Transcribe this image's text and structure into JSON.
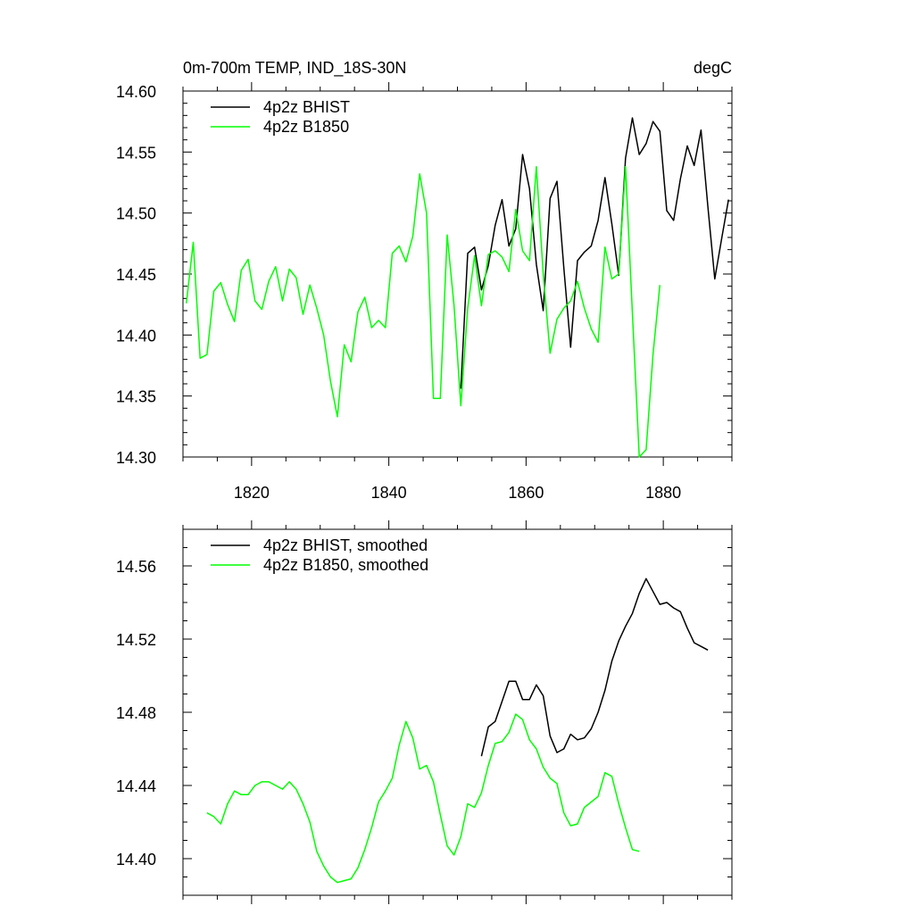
{
  "chart_data": [
    {
      "type": "line",
      "title_left": "0m-700m TEMP, IND_18S-30N",
      "title_right": "degC",
      "xlim": [
        1810,
        1890
      ],
      "ylim": [
        14.3,
        14.6
      ],
      "xticks": [
        1820,
        1840,
        1860,
        1880
      ],
      "xtick_labels": [
        "1820",
        "1840",
        "1860",
        "1880"
      ],
      "yticks": [
        14.3,
        14.35,
        14.4,
        14.45,
        14.5,
        14.55,
        14.6
      ],
      "ytick_labels": [
        "14.30",
        "14.35",
        "14.40",
        "14.45",
        "14.50",
        "14.55",
        "14.60"
      ],
      "legend_position": "top-left",
      "series": [
        {
          "name": "4p2z BHIST",
          "color": "#000000",
          "x": [
            1850.5,
            1851.5,
            1852.5,
            1853.5,
            1854.5,
            1855.5,
            1856.5,
            1857.5,
            1858.5,
            1859.5,
            1860.5,
            1861.5,
            1862.5,
            1863.5,
            1864.5,
            1865.5,
            1866.5,
            1867.5,
            1868.5,
            1869.5,
            1870.5,
            1871.5,
            1872.5,
            1873.5,
            1874.5,
            1875.5,
            1876.5,
            1877.5,
            1878.5,
            1879.5,
            1880.5,
            1881.5,
            1882.5,
            1883.5,
            1884.5,
            1885.5,
            1886.5,
            1887.5,
            1888.5,
            1889.5
          ],
          "y": [
            14.356,
            14.467,
            14.472,
            14.437,
            14.457,
            14.49,
            14.511,
            14.473,
            14.487,
            14.548,
            14.52,
            14.458,
            14.42,
            14.512,
            14.526,
            14.455,
            14.39,
            14.461,
            14.468,
            14.473,
            14.494,
            14.529,
            14.491,
            14.449,
            14.545,
            14.578,
            14.548,
            14.557,
            14.575,
            14.567,
            14.502,
            14.494,
            14.528,
            14.555,
            14.539,
            14.568,
            14.505,
            14.446,
            14.479,
            14.511
          ]
        },
        {
          "name": "4p2z B1850",
          "color": "#00ff00",
          "x": [
            1810.5,
            1811.5,
            1812.5,
            1813.5,
            1814.5,
            1815.5,
            1816.5,
            1817.5,
            1818.5,
            1819.5,
            1820.5,
            1821.5,
            1822.5,
            1823.5,
            1824.5,
            1825.5,
            1826.5,
            1827.5,
            1828.5,
            1829.5,
            1830.5,
            1831.5,
            1832.5,
            1833.5,
            1834.5,
            1835.5,
            1836.5,
            1837.5,
            1838.5,
            1839.5,
            1840.5,
            1841.5,
            1842.5,
            1843.5,
            1844.5,
            1845.5,
            1846.5,
            1847.5,
            1848.5,
            1849.5,
            1850.5,
            1851.5,
            1852.5,
            1853.5,
            1854.5,
            1855.5,
            1856.5,
            1857.5,
            1858.5,
            1859.5,
            1860.5,
            1861.5,
            1862.5,
            1863.5,
            1864.5,
            1865.5,
            1866.5,
            1867.5,
            1868.5,
            1869.5,
            1870.5,
            1871.5,
            1872.5,
            1873.5,
            1874.5,
            1875.5,
            1876.5,
            1877.5,
            1878.5,
            1879.5
          ],
          "y": [
            14.426,
            14.476,
            14.381,
            14.384,
            14.436,
            14.443,
            14.425,
            14.411,
            14.453,
            14.462,
            14.428,
            14.421,
            14.444,
            14.456,
            14.428,
            14.454,
            14.447,
            14.417,
            14.441,
            14.422,
            14.4,
            14.362,
            14.333,
            14.392,
            14.378,
            14.419,
            14.431,
            14.406,
            14.412,
            14.406,
            14.467,
            14.473,
            14.46,
            14.481,
            14.532,
            14.5,
            14.348,
            14.348,
            14.482,
            14.424,
            14.342,
            14.422,
            14.465,
            14.424,
            14.466,
            14.469,
            14.464,
            14.452,
            14.503,
            14.469,
            14.461,
            14.538,
            14.45,
            14.385,
            14.413,
            14.422,
            14.428,
            14.444,
            14.422,
            14.405,
            14.394,
            14.472,
            14.446,
            14.45,
            14.538,
            14.418,
            14.3,
            14.306,
            14.384,
            14.441
          ]
        }
      ]
    },
    {
      "type": "line",
      "xlim": [
        1810,
        1890
      ],
      "ylim": [
        14.38,
        14.58
      ],
      "xticks": [
        1820,
        1840,
        1860,
        1880
      ],
      "xtick_labels": [],
      "yticks": [
        14.4,
        14.44,
        14.48,
        14.52,
        14.56
      ],
      "ytick_labels": [
        "14.40",
        "14.44",
        "14.48",
        "14.52",
        "14.56"
      ],
      "legend_position": "top-left",
      "series": [
        {
          "name": "4p2z BHIST, smoothed",
          "color": "#000000",
          "x": [
            1853.5,
            1854.5,
            1855.5,
            1856.5,
            1857.5,
            1858.5,
            1859.5,
            1860.5,
            1861.5,
            1862.5,
            1863.5,
            1864.5,
            1865.5,
            1866.5,
            1867.5,
            1868.5,
            1869.5,
            1870.5,
            1871.5,
            1872.5,
            1873.5,
            1874.5,
            1875.5,
            1876.5,
            1877.5,
            1878.5,
            1879.5,
            1880.5,
            1881.5,
            1882.5,
            1883.5,
            1884.5,
            1885.5,
            1886.5
          ],
          "y": [
            14.456,
            14.472,
            14.475,
            14.486,
            14.497,
            14.497,
            14.487,
            14.487,
            14.495,
            14.489,
            14.467,
            14.458,
            14.46,
            14.468,
            14.465,
            14.466,
            14.471,
            14.48,
            14.492,
            14.508,
            14.519,
            14.527,
            14.534,
            14.545,
            14.553,
            14.546,
            14.539,
            14.54,
            14.537,
            14.535,
            14.526,
            14.518,
            14.516,
            14.514
          ]
        },
        {
          "name": "4p2z B1850, smoothed",
          "color": "#00ff00",
          "x": [
            1813.5,
            1814.5,
            1815.5,
            1816.5,
            1817.5,
            1818.5,
            1819.5,
            1820.5,
            1821.5,
            1822.5,
            1823.5,
            1824.5,
            1825.5,
            1826.5,
            1827.5,
            1828.5,
            1829.5,
            1830.5,
            1831.5,
            1832.5,
            1833.5,
            1834.5,
            1835.5,
            1836.5,
            1837.5,
            1838.5,
            1839.5,
            1840.5,
            1841.5,
            1842.5,
            1843.5,
            1844.5,
            1845.5,
            1846.5,
            1847.5,
            1848.5,
            1849.5,
            1850.5,
            1851.5,
            1852.5,
            1853.5,
            1854.5,
            1855.5,
            1856.5,
            1857.5,
            1858.5,
            1859.5,
            1860.5,
            1861.5,
            1862.5,
            1863.5,
            1864.5,
            1865.5,
            1866.5,
            1867.5,
            1868.5,
            1869.5,
            1870.5,
            1871.5,
            1872.5,
            1873.5,
            1874.5,
            1875.5,
            1876.5
          ],
          "y": [
            14.425,
            14.423,
            14.419,
            14.43,
            14.437,
            14.435,
            14.435,
            14.44,
            14.442,
            14.442,
            14.44,
            14.438,
            14.442,
            14.438,
            14.43,
            14.42,
            14.404,
            14.396,
            14.39,
            14.387,
            14.388,
            14.389,
            14.395,
            14.405,
            14.417,
            14.431,
            14.437,
            14.444,
            14.462,
            14.475,
            14.466,
            14.449,
            14.451,
            14.442,
            14.424,
            14.407,
            14.402,
            14.412,
            14.43,
            14.428,
            14.436,
            14.451,
            14.463,
            14.464,
            14.469,
            14.479,
            14.476,
            14.465,
            14.46,
            14.45,
            14.444,
            14.441,
            14.425,
            14.418,
            14.419,
            14.428,
            14.431,
            14.434,
            14.447,
            14.445,
            14.43,
            14.417,
            14.405,
            14.404
          ]
        }
      ]
    }
  ]
}
